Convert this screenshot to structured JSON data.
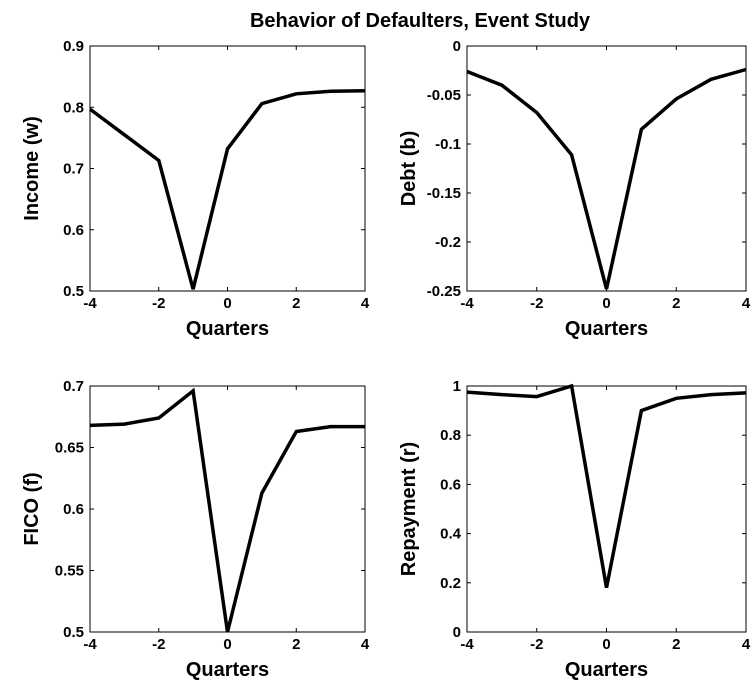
{
  "title": "Behavior of Defaulters, Event Study",
  "chart_data": [
    {
      "type": "line",
      "xlabel": "Quarters",
      "ylabel": "Income (w)",
      "xlim": [
        -4,
        4
      ],
      "ylim": [
        0.5,
        0.9
      ],
      "xticks": [
        "-4",
        "-2",
        "0",
        "2",
        "4"
      ],
      "yticks": [
        "0.5",
        "0.6",
        "0.7",
        "0.8",
        "0.9"
      ],
      "x": [
        -4,
        -3,
        -2,
        -1,
        0,
        1,
        2,
        3,
        4
      ],
      "y": [
        0.797,
        0.755,
        0.713,
        0.503,
        0.732,
        0.806,
        0.822,
        0.826,
        0.827
      ]
    },
    {
      "type": "line",
      "xlabel": "Quarters",
      "ylabel": "Debt (b)",
      "xlim": [
        -4,
        4
      ],
      "ylim": [
        -0.25,
        0
      ],
      "xticks": [
        "-4",
        "-2",
        "0",
        "2",
        "4"
      ],
      "yticks": [
        "-0.25",
        "-0.2",
        "-0.15",
        "-0.1",
        "-0.05",
        "0"
      ],
      "x": [
        -4,
        -3,
        -2,
        -1,
        0,
        1,
        2,
        3,
        4
      ],
      "y": [
        -0.026,
        -0.04,
        -0.068,
        -0.111,
        -0.248,
        -0.085,
        -0.054,
        -0.034,
        -0.024
      ]
    },
    {
      "type": "line",
      "xlabel": "Quarters",
      "ylabel": "FICO (f)",
      "xlim": [
        -4,
        4
      ],
      "ylim": [
        0.5,
        0.7
      ],
      "xticks": [
        "-4",
        "-2",
        "0",
        "2",
        "4"
      ],
      "yticks": [
        "0.5",
        "0.55",
        "0.6",
        "0.65",
        "0.7"
      ],
      "x": [
        -4,
        -3,
        -2,
        -1,
        0,
        1,
        2,
        3,
        4
      ],
      "y": [
        0.668,
        0.669,
        0.674,
        0.696,
        0.5,
        0.613,
        0.663,
        0.667,
        0.667
      ]
    },
    {
      "type": "line",
      "xlabel": "Quarters",
      "ylabel": "Repayment (r)",
      "xlim": [
        -4,
        4
      ],
      "ylim": [
        0,
        1
      ],
      "xticks": [
        "-4",
        "-2",
        "0",
        "2",
        "4"
      ],
      "yticks": [
        "0",
        "0.2",
        "0.4",
        "0.6",
        "0.8",
        "1"
      ],
      "x": [
        -4,
        -3,
        -2,
        -1,
        0,
        1,
        2,
        3,
        4
      ],
      "y": [
        0.975,
        0.965,
        0.957,
        1.0,
        0.18,
        0.9,
        0.95,
        0.965,
        0.972
      ]
    }
  ]
}
